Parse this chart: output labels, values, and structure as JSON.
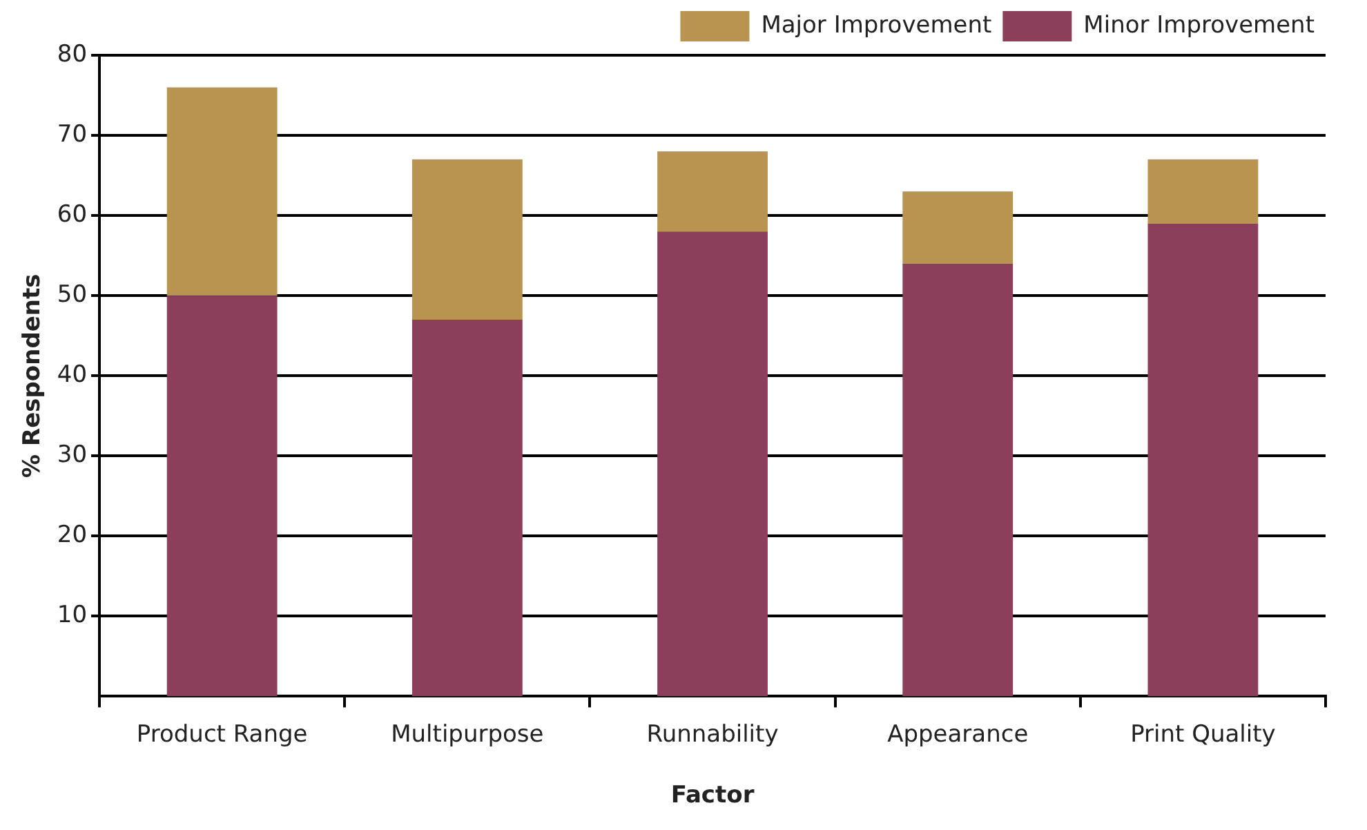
{
  "chart_data": {
    "type": "bar",
    "stacked": true,
    "xlabel": "Factor",
    "ylabel": "% Respondents",
    "categories": [
      "Product Range",
      "Multipurpose",
      "Runnability",
      "Appearance",
      "Print Quality"
    ],
    "series": [
      {
        "name": "Minor Improvement",
        "color": "#8b3f5a",
        "values": [
          50,
          47,
          58,
          54,
          59
        ]
      },
      {
        "name": "Major Improvement",
        "color": "#b99450",
        "values": [
          26,
          20,
          10,
          9,
          8
        ]
      }
    ],
    "ylim": [
      0,
      80
    ],
    "yticks": [
      10,
      20,
      30,
      40,
      50,
      60,
      70,
      80
    ],
    "grid": "y",
    "legend": "top right"
  }
}
